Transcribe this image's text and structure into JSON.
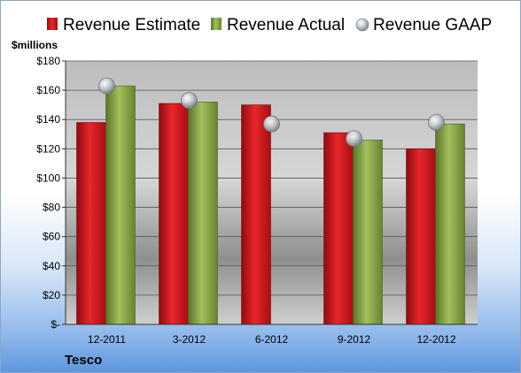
{
  "company": "Tesco",
  "chart_data": {
    "type": "bar",
    "unit_label": "$millions",
    "categories": [
      "12-2011",
      "3-2012",
      "6-2012",
      "9-2012",
      "12-2012"
    ],
    "series": [
      {
        "name": "Revenue Estimate",
        "kind": "bar",
        "color": "#d41a1f",
        "values": [
          138,
          151,
          150,
          131,
          120
        ]
      },
      {
        "name": "Revenue Actual",
        "kind": "bar",
        "color": "#8aa94a",
        "values": [
          163,
          152,
          null,
          126,
          137
        ]
      },
      {
        "name": "Revenue GAAP",
        "kind": "marker",
        "color": "#b8bec6",
        "values": [
          163,
          153,
          137,
          127,
          138
        ]
      }
    ],
    "ylim": [
      0,
      180
    ],
    "y_ticks": [
      "$-",
      "$20",
      "$40",
      "$60",
      "$80",
      "$100",
      "$120",
      "$140",
      "$160",
      "$180"
    ],
    "grid": true,
    "legend_position": "top"
  }
}
